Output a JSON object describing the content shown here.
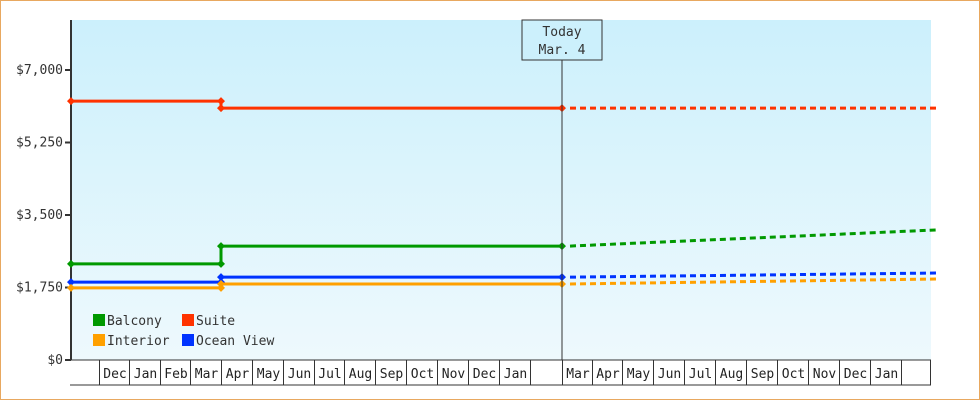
{
  "chart_data": {
    "type": "line",
    "title": "",
    "xlabel": "",
    "ylabel": "",
    "ylim": [
      0,
      7000
    ],
    "yticks": [
      "$0",
      "$1,750",
      "$3,500",
      "$5,250",
      "$7,000"
    ],
    "ytick_values": [
      0,
      1750,
      3500,
      5250,
      7000
    ],
    "x_months": [
      "",
      "Dec",
      "Jan",
      "Feb",
      "Mar",
      "Apr",
      "May",
      "Jun",
      "Jul",
      "Aug",
      "Sep",
      "Oct",
      "Nov",
      "Dec",
      "Jan",
      "",
      "Mar",
      "Apr",
      "May",
      "Jun",
      "Jul",
      "Aug",
      "Sep",
      "Oct",
      "Nov",
      "Dec",
      "Jan",
      ""
    ],
    "today_marker": {
      "line1": "Today",
      "line2": "Mar. 4"
    },
    "legend": [
      {
        "name": "Balcony",
        "color": "#009900"
      },
      {
        "name": "Suite",
        "color": "#ff3300"
      },
      {
        "name": "Interior",
        "color": "#ffa000"
      },
      {
        "name": "Ocean View",
        "color": "#0033ff"
      }
    ],
    "series": [
      {
        "name": "Suite",
        "color": "#ff3300",
        "historical": [
          {
            "x": "start",
            "y": 6250
          },
          {
            "x": "Apr",
            "y": 6250
          },
          {
            "x": "Apr",
            "y": 6080
          },
          {
            "x": "Today",
            "y": 6080
          }
        ],
        "projected": [
          {
            "x": "Today",
            "y": 6080
          },
          {
            "x": "end",
            "y": 6080
          }
        ]
      },
      {
        "name": "Balcony",
        "color": "#009900",
        "historical": [
          {
            "x": "start",
            "y": 2320
          },
          {
            "x": "Apr",
            "y": 2320
          },
          {
            "x": "Apr",
            "y": 2750
          },
          {
            "x": "Today",
            "y": 2750
          }
        ],
        "projected": [
          {
            "x": "Today",
            "y": 2750
          },
          {
            "x": "end",
            "y": 3140
          }
        ]
      },
      {
        "name": "Ocean View",
        "color": "#0033ff",
        "historical": [
          {
            "x": "start",
            "y": 1880
          },
          {
            "x": "Apr",
            "y": 1880
          },
          {
            "x": "Apr",
            "y": 2000
          },
          {
            "x": "Today",
            "y": 2000
          }
        ],
        "projected": [
          {
            "x": "Today",
            "y": 2000
          },
          {
            "x": "end",
            "y": 2100
          }
        ]
      },
      {
        "name": "Interior",
        "color": "#ffa000",
        "historical": [
          {
            "x": "start",
            "y": 1740
          },
          {
            "x": "Apr",
            "y": 1740
          },
          {
            "x": "Apr",
            "y": 1835
          },
          {
            "x": "Today",
            "y": 1835
          }
        ],
        "projected": [
          {
            "x": "Today",
            "y": 1835
          },
          {
            "x": "end",
            "y": 1955
          }
        ]
      }
    ],
    "grid": false,
    "legend_position": "lower-left inside"
  }
}
